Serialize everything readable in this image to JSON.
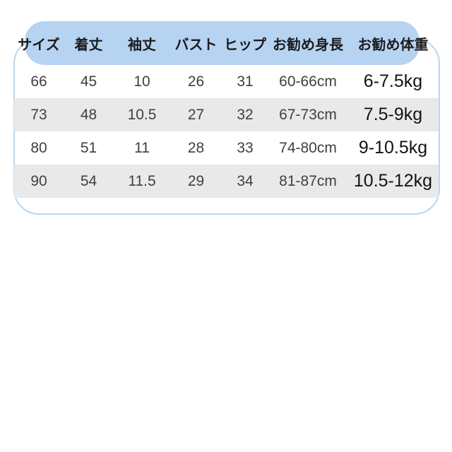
{
  "colors": {
    "page-bg": "#ffffff",
    "header-blue": "#b6d3f2",
    "outline-blue": "#bad6f0",
    "stripe-gray": "#e9e9e9",
    "header-text": "#1c1c1c",
    "data-text": "#404040",
    "weight-text": "#131313"
  },
  "chart_data": {
    "type": "table",
    "title": "",
    "columns": [
      "サイズ",
      "着丈",
      "袖丈",
      "バスト",
      "ヒップ",
      "お勧め身長",
      "お勧め体重"
    ],
    "rows": [
      [
        "66",
        "45",
        "10",
        "26",
        "31",
        "60-66cm",
        "6-7.5kg"
      ],
      [
        "73",
        "48",
        "10.5",
        "27",
        "32",
        "67-73cm",
        "7.5-9kg"
      ],
      [
        "80",
        "51",
        "11",
        "28",
        "33",
        "74-80cm",
        "9-10.5kg"
      ],
      [
        "90",
        "54",
        "11.5",
        "29",
        "34",
        "81-87cm",
        "10.5-12kg"
      ]
    ],
    "layout_hints": {
      "header_style": "rounded blue pill",
      "row_striping": "rows 2 and 4 light gray",
      "border": "thin light-blue rounded rectangle around table"
    }
  }
}
